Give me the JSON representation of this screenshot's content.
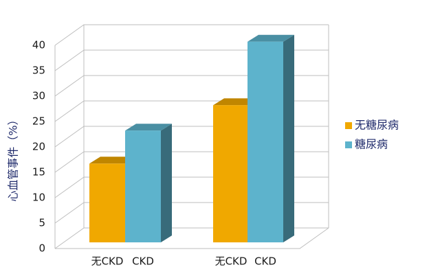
{
  "chart_data": {
    "type": "bar3d",
    "y_label": "心血管事件（%）",
    "categories": [
      "无CKD",
      "CKD",
      "无CKD",
      "CKD"
    ],
    "series": [
      {
        "name": "无糖尿病",
        "color": "#f0a800",
        "values": [
          15.5,
          null,
          27,
          null
        ]
      },
      {
        "name": "糖尿病",
        "color": "#5db3cc",
        "values": [
          null,
          22,
          null,
          39.5
        ]
      }
    ],
    "ylim": [
      0,
      40
    ],
    "yticks": [
      0,
      5,
      10,
      15,
      20,
      25,
      30,
      35,
      40
    ],
    "grid": true,
    "legend": "right"
  }
}
